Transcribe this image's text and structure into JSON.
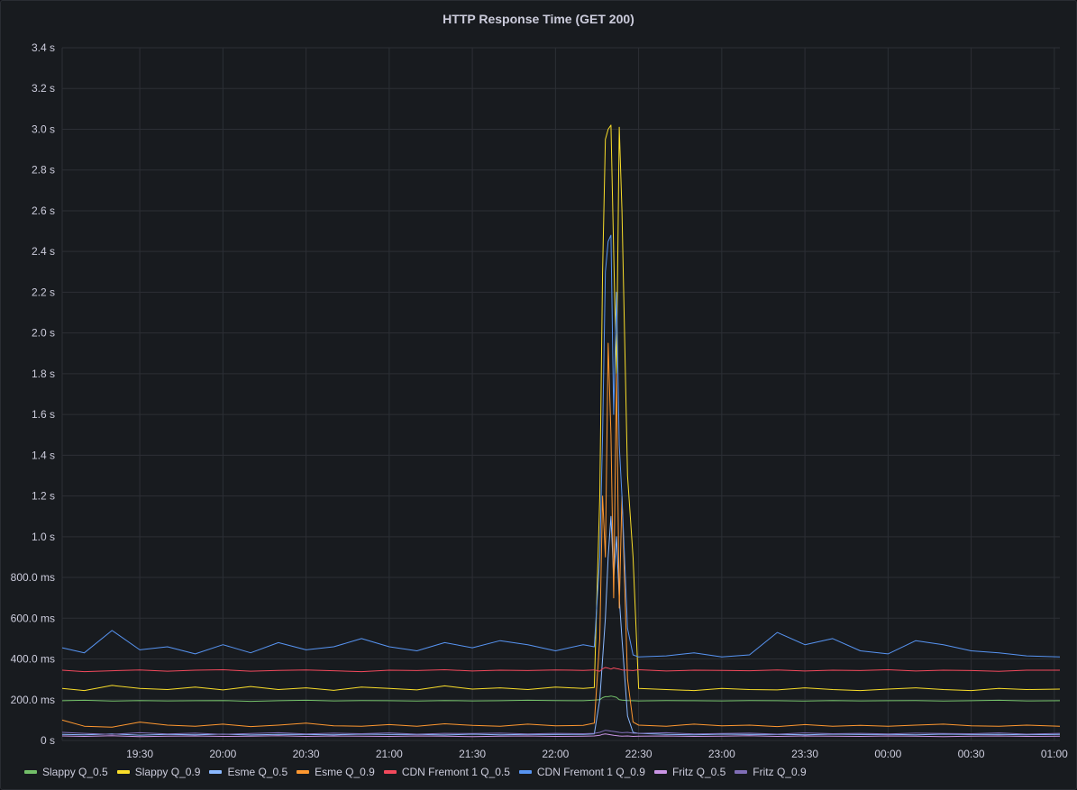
{
  "panel": {
    "title": "HTTP Response Time (GET 200)"
  },
  "chart_data": {
    "type": "line",
    "title": "HTTP Response Time (GET 200)",
    "xlabel": "",
    "ylabel": "",
    "x_ticks": [
      "19:30",
      "20:00",
      "20:30",
      "21:00",
      "21:30",
      "22:00",
      "22:30",
      "23:00",
      "23:30",
      "00:00",
      "00:30",
      "01:00"
    ],
    "y_ticks": [
      "0 s",
      "200.0 ms",
      "400.0 ms",
      "600.0 ms",
      "800.0 ms",
      "1.0 s",
      "1.2 s",
      "1.4 s",
      "1.6 s",
      "1.8 s",
      "2.0 s",
      "2.2 s",
      "2.4 s",
      "2.6 s",
      "2.8 s",
      "3.0 s",
      "3.2 s",
      "3.4 s"
    ],
    "ylim_ms": [
      0,
      3400
    ],
    "xlim": [
      "19:02",
      "01:02"
    ],
    "grid": true,
    "legend_position": "bottom",
    "x": [
      "19:02",
      "19:10",
      "19:20",
      "19:30",
      "19:40",
      "19:50",
      "20:00",
      "20:10",
      "20:20",
      "20:30",
      "20:40",
      "20:50",
      "21:00",
      "21:10",
      "21:20",
      "21:30",
      "21:40",
      "21:50",
      "22:00",
      "22:10",
      "22:14",
      "22:16",
      "22:17",
      "22:18",
      "22:19",
      "22:20",
      "22:21",
      "22:22",
      "22:23",
      "22:24",
      "22:26",
      "22:28",
      "22:30",
      "22:40",
      "22:50",
      "23:00",
      "23:10",
      "23:20",
      "23:30",
      "23:40",
      "23:50",
      "00:00",
      "00:10",
      "00:20",
      "00:30",
      "00:40",
      "00:50",
      "01:02"
    ],
    "series": [
      {
        "name": "Slappy Q_0.5",
        "color": "#73bf69",
        "values": [
          195,
          197,
          193,
          196,
          194,
          195,
          196,
          192,
          195,
          197,
          194,
          196,
          195,
          193,
          196,
          194,
          195,
          197,
          196,
          195,
          198,
          200,
          210,
          215,
          215,
          218,
          215,
          212,
          200,
          198,
          196,
          195,
          194,
          196,
          195,
          194,
          196,
          195,
          193,
          196,
          194,
          195,
          196,
          193,
          195,
          197,
          194,
          195
        ]
      },
      {
        "name": "Slappy Q_0.9",
        "color": "#fade2a",
        "values": [
          255,
          245,
          270,
          255,
          250,
          262,
          248,
          265,
          250,
          258,
          246,
          262,
          255,
          248,
          268,
          252,
          258,
          250,
          262,
          255,
          260,
          1200,
          2300,
          2950,
          3000,
          3020,
          2400,
          1800,
          3010,
          2600,
          1300,
          900,
          255,
          250,
          245,
          255,
          250,
          248,
          258,
          250,
          245,
          252,
          258,
          250,
          245,
          255,
          250,
          252
        ]
      },
      {
        "name": "Esme Q_0.5",
        "color": "#8ab8ff",
        "values": [
          30,
          28,
          32,
          26,
          30,
          28,
          31,
          27,
          30,
          29,
          28,
          31,
          29,
          30,
          27,
          31,
          28,
          30,
          29,
          30,
          32,
          200,
          400,
          600,
          900,
          1100,
          800,
          1000,
          700,
          500,
          120,
          40,
          35,
          30,
          28,
          31,
          29,
          30,
          28,
          31,
          29,
          30,
          28,
          31,
          29,
          30,
          28,
          30
        ]
      },
      {
        "name": "Esme Q_0.9",
        "color": "#ff9830",
        "values": [
          100,
          70,
          65,
          90,
          75,
          70,
          80,
          68,
          75,
          85,
          72,
          70,
          78,
          70,
          82,
          74,
          70,
          80,
          72,
          74,
          85,
          500,
          1200,
          900,
          1950,
          1500,
          700,
          1800,
          650,
          1200,
          300,
          90,
          75,
          70,
          80,
          72,
          75,
          68,
          78,
          70,
          74,
          70,
          75,
          80,
          72,
          70,
          75,
          70
        ]
      },
      {
        "name": "CDN Fremont 1 Q_0.5",
        "color": "#f2495c",
        "values": [
          345,
          338,
          342,
          346,
          340,
          345,
          347,
          340,
          344,
          346,
          342,
          338,
          345,
          343,
          347,
          341,
          345,
          343,
          346,
          344,
          346,
          340,
          352,
          358,
          355,
          350,
          356,
          353,
          350,
          346,
          345,
          343,
          347,
          341,
          345,
          344,
          342,
          346,
          341,
          345,
          343,
          347,
          341,
          345,
          343,
          339,
          345,
          345
        ]
      },
      {
        "name": "CDN Fremont 1 Q_0.9",
        "color": "#5794f2",
        "values": [
          455,
          430,
          540,
          445,
          460,
          425,
          470,
          430,
          480,
          445,
          460,
          500,
          460,
          440,
          480,
          455,
          490,
          470,
          440,
          470,
          460,
          900,
          1500,
          2300,
          2450,
          2480,
          1600,
          2200,
          1450,
          1200,
          550,
          420,
          410,
          415,
          430,
          410,
          420,
          530,
          470,
          500,
          440,
          425,
          490,
          470,
          440,
          430,
          415,
          410
        ]
      },
      {
        "name": "Fritz Q_0.5",
        "color": "#ca95e5",
        "values": [
          22,
          20,
          23,
          19,
          21,
          22,
          20,
          21,
          23,
          20,
          22,
          21,
          20,
          22,
          21,
          19,
          21,
          22,
          20,
          21,
          22,
          25,
          30,
          32,
          30,
          28,
          25,
          24,
          22,
          21,
          22,
          20,
          21,
          22,
          20,
          21,
          23,
          20,
          22,
          21,
          20,
          22,
          21,
          19,
          21,
          22,
          20,
          21
        ]
      },
      {
        "name": "Fritz Q_0.9",
        "color": "#806eb7",
        "values": [
          40,
          35,
          30,
          38,
          32,
          36,
          30,
          34,
          38,
          32,
          36,
          33,
          37,
          31,
          35,
          34,
          36,
          32,
          35,
          33,
          35,
          40,
          45,
          50,
          48,
          46,
          44,
          42,
          40,
          38,
          40,
          36,
          35,
          38,
          32,
          34,
          36,
          31,
          37,
          33,
          35,
          32,
          36,
          34,
          33,
          37,
          31,
          35
        ]
      }
    ]
  },
  "legend": {
    "items": [
      {
        "label": "Slappy Q_0.5",
        "color": "#73bf69"
      },
      {
        "label": "Slappy Q_0.9",
        "color": "#fade2a"
      },
      {
        "label": "Esme Q_0.5",
        "color": "#8ab8ff"
      },
      {
        "label": "Esme Q_0.9",
        "color": "#ff9830"
      },
      {
        "label": "CDN Fremont 1 Q_0.5",
        "color": "#f2495c"
      },
      {
        "label": "CDN Fremont 1 Q_0.9",
        "color": "#5794f2"
      },
      {
        "label": "Fritz Q_0.5",
        "color": "#ca95e5"
      },
      {
        "label": "Fritz Q_0.9",
        "color": "#806eb7"
      }
    ]
  }
}
